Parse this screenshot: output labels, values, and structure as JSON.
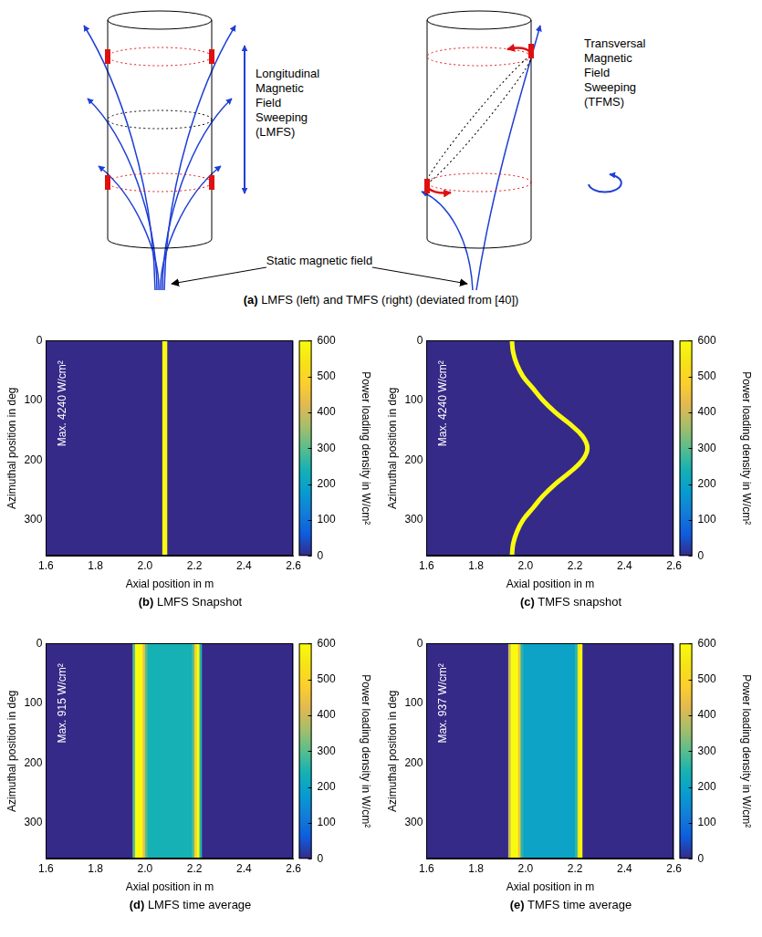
{
  "diagram": {
    "panel": "(a)",
    "caption": "LMFS (left) and TMFS (right) (deviated from [40])",
    "left_label": [
      "Longitudinal",
      "Magnetic",
      "Field",
      "Sweeping",
      "(LMFS)"
    ],
    "right_label": [
      "Transversal",
      "Magnetic",
      "Field",
      "Sweeping",
      "(TFMS)"
    ],
    "static_label": "Static magnetic field"
  },
  "chart_data": [
    {
      "type": "heatmap",
      "panel": "(b)",
      "caption": "LMFS Snapshot",
      "xlabel": "Axial position in m",
      "ylabel": "Azimuthal position in deg",
      "xlim": [
        1.6,
        2.6
      ],
      "xticks": [
        1.6,
        1.8,
        {
          "value": 2,
          "label": "2.0"
        },
        2.2,
        2.4,
        2.6
      ],
      "ylim": [
        0,
        360
      ],
      "yticks": [
        0,
        100,
        200,
        300
      ],
      "annotation": "Max. 4240 W/cm²",
      "colorbar": {
        "label": "Power loading density in W/cm²",
        "range": [
          0,
          600
        ],
        "ticks": [
          0,
          100,
          200,
          300,
          400,
          500,
          600
        ]
      },
      "cells": {
        "x_edges": [
          1.6,
          2.07,
          2.09,
          2.6
        ],
        "values": [
          0,
          4240,
          0
        ]
      }
    },
    {
      "type": "heatmap",
      "panel": "(c)",
      "caption": "TMFS snapshot",
      "xlabel": "Axial position in m",
      "ylabel": "Azimuthal position in deg",
      "xlim": [
        1.6,
        2.6
      ],
      "xticks": [
        1.6,
        1.8,
        {
          "value": 2,
          "label": "2.0"
        },
        2.2,
        2.4,
        2.6
      ],
      "ylim": [
        0,
        360
      ],
      "yticks": [
        0,
        100,
        200,
        300
      ],
      "annotation": "Max. 4240 W/cm²",
      "colorbar": {
        "label": "Power loading density in W/cm²",
        "range": [
          0,
          600
        ],
        "ticks": [
          0,
          100,
          200,
          300,
          400,
          500,
          600
        ]
      },
      "background": 0,
      "curve": {
        "x": [
          1.945,
          1.95,
          1.965,
          1.99,
          2.03,
          2.07,
          2.12,
          2.18,
          2.23,
          2.25,
          2.23,
          2.18,
          2.12,
          2.07,
          2.03,
          1.99,
          1.965,
          1.95,
          1.945
        ],
        "y": [
          0,
          20,
          40,
          60,
          80,
          100,
          120,
          140,
          160,
          180,
          200,
          220,
          240,
          260,
          280,
          300,
          320,
          340,
          360
        ],
        "value": 4240
      }
    },
    {
      "type": "heatmap",
      "panel": "(d)",
      "caption": "LMFS time average",
      "xlabel": "Axial position in m",
      "ylabel": "Azimuthal position in deg",
      "xlim": [
        1.6,
        2.6
      ],
      "xticks": [
        1.6,
        1.8,
        {
          "value": 2,
          "label": "2.0"
        },
        2.2,
        2.4,
        2.6
      ],
      "ylim": [
        0,
        360
      ],
      "yticks": [
        0,
        100,
        200,
        300
      ],
      "annotation": "Max. 915 W/cm²",
      "colorbar": {
        "label": "Power loading density in W/cm²",
        "range": [
          0,
          600
        ],
        "ticks": [
          0,
          100,
          200,
          300,
          400,
          500,
          600
        ]
      },
      "cells": {
        "x_edges": [
          1.6,
          1.95,
          1.96,
          1.97,
          1.98,
          1.99,
          2.0,
          2.01,
          2.19,
          2.2,
          2.21,
          2.22,
          2.23,
          2.6
        ],
        "values": [
          0,
          300,
          750,
          915,
          700,
          450,
          300,
          240,
          300,
          500,
          700,
          250,
          0
        ]
      }
    },
    {
      "type": "heatmap",
      "panel": "(e)",
      "caption": "TMFS time average",
      "xlabel": "Axial position in m",
      "ylabel": "Azimuthal position in deg",
      "xlim": [
        1.6,
        2.6
      ],
      "xticks": [
        1.6,
        1.8,
        {
          "value": 2,
          "label": "2.0"
        },
        2.2,
        2.4,
        2.6
      ],
      "ylim": [
        0,
        360
      ],
      "yticks": [
        0,
        100,
        200,
        300
      ],
      "annotation": "Max. 937 W/cm²",
      "colorbar": {
        "label": "Power loading density in W/cm²",
        "range": [
          0,
          600
        ],
        "ticks": [
          0,
          100,
          200,
          300,
          400,
          500,
          600
        ]
      },
      "cells": {
        "x_edges": [
          1.6,
          1.93,
          1.94,
          1.95,
          1.96,
          1.97,
          1.98,
          1.99,
          2.2,
          2.21,
          2.22,
          2.23,
          2.6
        ],
        "values": [
          0,
          400,
          800,
          937,
          750,
          450,
          260,
          200,
          260,
          550,
          650,
          0
        ]
      }
    }
  ]
}
